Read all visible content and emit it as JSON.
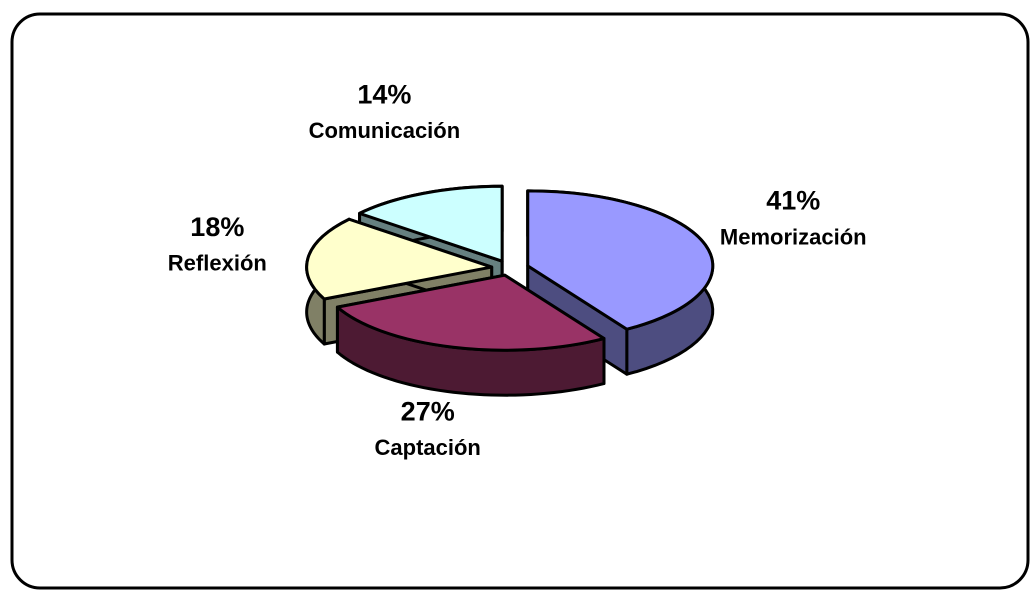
{
  "chart_data": {
    "type": "pie3d",
    "categories": [
      "Memorización",
      "Captación",
      "Reflexión",
      "Comunicación"
    ],
    "values": [
      41,
      27,
      18,
      14
    ],
    "value_labels": [
      "41%",
      "27%",
      "18%",
      "14%"
    ],
    "colors": [
      "#9999ff",
      "#993366",
      "#ffffcc",
      "#ccffff"
    ]
  }
}
